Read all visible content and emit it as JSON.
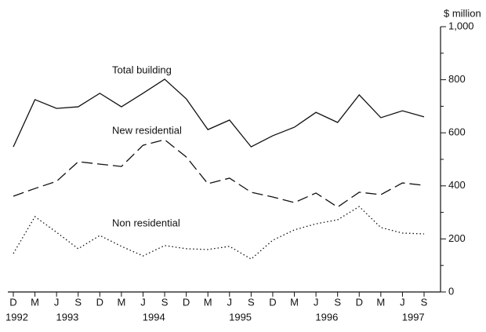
{
  "chart_data": {
    "type": "line",
    "y_axis_label": "$ million",
    "categories": [
      "D",
      "M",
      "J",
      "S",
      "D",
      "M",
      "J",
      "S",
      "D",
      "M",
      "J",
      "S",
      "D",
      "M",
      "J",
      "S",
      "D",
      "M",
      "J",
      "S"
    ],
    "years": [
      "1992",
      null,
      null,
      "1993",
      null,
      null,
      null,
      "1994",
      null,
      null,
      null,
      "1995",
      null,
      null,
      null,
      "1996",
      null,
      null,
      null,
      "1997"
    ],
    "ylim": [
      0,
      1000
    ],
    "yticks": [
      0,
      200,
      400,
      600,
      800,
      {
        "value": 1000,
        "label": "1,000"
      }
    ],
    "minor_yticks": [
      100,
      300,
      500,
      700,
      900
    ],
    "series": [
      {
        "name": "Total building",
        "color": "#111111",
        "dash": "solid",
        "values": [
          547,
          725,
          692,
          698,
          749,
          698,
          749,
          802,
          728,
          612,
          648,
          547,
          589,
          621,
          677,
          639,
          743,
          657,
          683,
          660
        ]
      },
      {
        "name": "New residential",
        "color": "#111111",
        "dash": "dashed",
        "values": [
          361,
          390,
          417,
          491,
          482,
          473,
          553,
          574,
          509,
          408,
          429,
          376,
          358,
          337,
          373,
          320,
          376,
          367,
          411,
          402
        ]
      },
      {
        "name": "Non residential",
        "color": "#111111",
        "dash": "dotted",
        "values": [
          145,
          284,
          225,
          163,
          213,
          172,
          136,
          175,
          163,
          160,
          172,
          124,
          195,
          234,
          257,
          272,
          322,
          243,
          222,
          219
        ]
      }
    ]
  }
}
